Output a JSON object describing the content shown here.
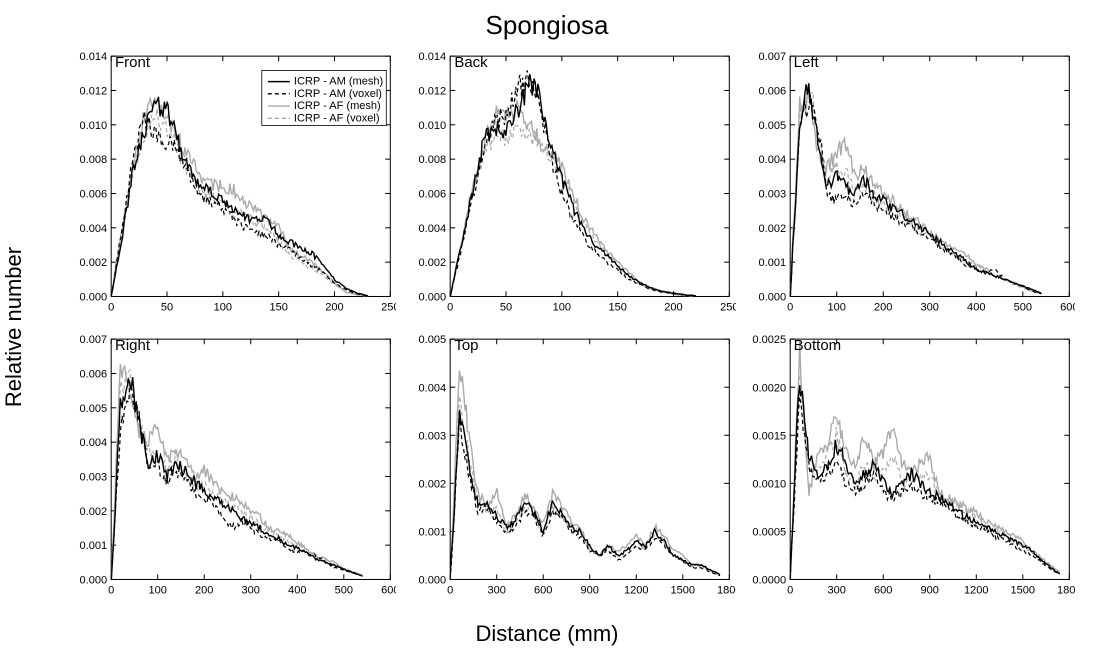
{
  "title": "Spongiosa",
  "y_axis_label": "Relative number",
  "x_axis_label": "Distance (mm)",
  "background_color": "#ffffff",
  "axis_color": "#000000",
  "tick_fontsize": 11,
  "label_fontsize": 22,
  "title_fontsize": 26,
  "panel_title_fontsize": 15,
  "legend": {
    "show_in_panel": 0,
    "items": [
      {
        "label": "ICRP - AM (mesh)",
        "color": "#000000",
        "dash": "solid"
      },
      {
        "label": "ICRP - AM (voxel)",
        "color": "#000000",
        "dash": "dash"
      },
      {
        "label": "ICRP - AF (mesh)",
        "color": "#aaaaaa",
        "dash": "solid"
      },
      {
        "label": "ICRP - AF (voxel)",
        "color": "#aaaaaa",
        "dash": "dash"
      }
    ]
  },
  "series_styles": [
    {
      "key": "am_mesh",
      "color": "#000000",
      "dash": "",
      "width": 1.4
    },
    {
      "key": "am_voxel",
      "color": "#000000",
      "dash": "4 3",
      "width": 1.2
    },
    {
      "key": "af_mesh",
      "color": "#aaaaaa",
      "dash": "",
      "width": 1.4
    },
    {
      "key": "af_voxel",
      "color": "#aaaaaa",
      "dash": "4 3",
      "width": 1.2
    }
  ],
  "panels": [
    {
      "name": "Front",
      "xlim": [
        0,
        250
      ],
      "xtick_step": 50,
      "ylim": [
        0,
        0.014
      ],
      "ytick_step": 0.002,
      "y_decimals": 3,
      "x_seed": [
        0,
        10,
        20,
        30,
        40,
        50,
        60,
        70,
        80,
        90,
        100,
        110,
        120,
        130,
        140,
        150,
        160,
        170,
        180,
        190,
        200,
        210,
        220,
        230
      ],
      "series": {
        "am_mesh": [
          0.0,
          0.0035,
          0.0075,
          0.0098,
          0.0112,
          0.0108,
          0.009,
          0.0075,
          0.0064,
          0.006,
          0.0055,
          0.005,
          0.0046,
          0.0045,
          0.0044,
          0.0035,
          0.0032,
          0.0028,
          0.0025,
          0.0018,
          0.001,
          0.0005,
          0.0002,
          5e-05
        ],
        "am_voxel": [
          0.0,
          0.004,
          0.0082,
          0.0105,
          0.0095,
          0.009,
          0.0085,
          0.0072,
          0.0058,
          0.0055,
          0.0052,
          0.0045,
          0.004,
          0.0038,
          0.0035,
          0.003,
          0.0028,
          0.0022,
          0.0018,
          0.0014,
          0.0008,
          0.0004,
          0.00015,
          3e-05
        ],
        "af_mesh": [
          0.0,
          0.004,
          0.008,
          0.0105,
          0.0116,
          0.0102,
          0.0092,
          0.0082,
          0.0068,
          0.0065,
          0.0064,
          0.0062,
          0.0055,
          0.005,
          0.0045,
          0.0042,
          0.0028,
          0.0024,
          0.002,
          0.0014,
          0.0008,
          0.00025,
          0.0001,
          3e-05
        ],
        "af_voxel": [
          0.0,
          0.0038,
          0.0075,
          0.0095,
          0.0105,
          0.0098,
          0.0085,
          0.0072,
          0.0062,
          0.0058,
          0.0055,
          0.0048,
          0.005,
          0.0042,
          0.004,
          0.0032,
          0.0024,
          0.002,
          0.0016,
          0.0012,
          0.0007,
          0.0003,
          0.0001,
          3e-05
        ]
      }
    },
    {
      "name": "Back",
      "xlim": [
        0,
        250
      ],
      "xtick_step": 50,
      "ylim": [
        0,
        0.014
      ],
      "ytick_step": 0.002,
      "y_decimals": 3,
      "x_seed": [
        0,
        10,
        20,
        30,
        40,
        50,
        60,
        70,
        80,
        90,
        100,
        110,
        120,
        130,
        140,
        150,
        160,
        170,
        180,
        190,
        200,
        210,
        220
      ],
      "series": {
        "am_mesh": [
          0.0,
          0.003,
          0.006,
          0.009,
          0.0098,
          0.0095,
          0.0109,
          0.0124,
          0.012,
          0.0086,
          0.0068,
          0.0052,
          0.0038,
          0.003,
          0.0024,
          0.0018,
          0.0012,
          0.0008,
          0.0005,
          0.0003,
          0.0002,
          0.0001,
          5e-05
        ],
        "am_voxel": [
          0.0,
          0.0028,
          0.0058,
          0.0085,
          0.0102,
          0.0105,
          0.012,
          0.0128,
          0.011,
          0.0082,
          0.006,
          0.0045,
          0.0034,
          0.0026,
          0.002,
          0.0015,
          0.001,
          0.0007,
          0.0004,
          0.00025,
          0.00015,
          8e-05,
          3e-05
        ],
        "af_mesh": [
          0.0,
          0.0032,
          0.0062,
          0.0088,
          0.0105,
          0.0106,
          0.0108,
          0.0102,
          0.009,
          0.0084,
          0.0075,
          0.006,
          0.0045,
          0.0035,
          0.0027,
          0.002,
          0.0014,
          0.0008,
          0.0005,
          0.0003,
          0.00015,
          8e-05,
          3e-05
        ],
        "af_voxel": [
          0.0,
          0.003,
          0.006,
          0.0082,
          0.0095,
          0.0092,
          0.0098,
          0.0095,
          0.0088,
          0.0082,
          0.007,
          0.0055,
          0.0042,
          0.0032,
          0.0025,
          0.0018,
          0.0012,
          0.0007,
          0.00045,
          0.00028,
          0.00012,
          6e-05,
          2e-05
        ]
      }
    },
    {
      "name": "Left",
      "xlim": [
        0,
        600
      ],
      "xtick_step": 100,
      "ylim": [
        0,
        0.007
      ],
      "ytick_step": 0.001,
      "y_decimals": 3,
      "x_seed": [
        0,
        20,
        40,
        60,
        80,
        100,
        120,
        140,
        160,
        180,
        200,
        220,
        240,
        260,
        280,
        300,
        320,
        340,
        360,
        380,
        400,
        420,
        440,
        460,
        480,
        500,
        520,
        540
      ],
      "series": {
        "am_mesh": [
          0.0,
          0.005,
          0.0062,
          0.0045,
          0.0032,
          0.0035,
          0.0032,
          0.003,
          0.0034,
          0.003,
          0.0028,
          0.0026,
          0.0024,
          0.0022,
          0.002,
          0.0018,
          0.0016,
          0.0014,
          0.0012,
          0.001,
          0.0008,
          0.0007,
          0.0006,
          0.0005,
          0.0004,
          0.0003,
          0.0002,
          0.0001
        ],
        "am_voxel": [
          0.0,
          0.0048,
          0.0058,
          0.005,
          0.003,
          0.0028,
          0.003,
          0.0026,
          0.0031,
          0.0027,
          0.0025,
          0.0023,
          0.0022,
          0.002,
          0.0018,
          0.0017,
          0.0015,
          0.0013,
          0.0011,
          0.0009,
          0.0008,
          0.0007,
          0.0008,
          0.0005,
          0.0004,
          0.0003,
          0.00015,
          8e-05
        ],
        "af_mesh": [
          0.0,
          0.0055,
          0.0058,
          0.0042,
          0.0038,
          0.0042,
          0.0045,
          0.0035,
          0.0038,
          0.0032,
          0.003,
          0.0028,
          0.0025,
          0.0023,
          0.0021,
          0.0019,
          0.0017,
          0.0015,
          0.0013,
          0.0012,
          0.0009,
          0.0008,
          0.0006,
          0.0005,
          0.0004,
          0.0003,
          0.0002,
          0.0001
        ],
        "af_voxel": [
          0.0,
          0.0052,
          0.0063,
          0.0048,
          0.0035,
          0.0038,
          0.0036,
          0.0032,
          0.0033,
          0.0029,
          0.0027,
          0.0025,
          0.0023,
          0.0021,
          0.0019,
          0.0018,
          0.0015,
          0.0013,
          0.0012,
          0.001,
          0.0009,
          0.0007,
          0.0006,
          0.0005,
          0.00035,
          0.00025,
          0.00015,
          8e-05
        ]
      }
    },
    {
      "name": "Right",
      "xlim": [
        0,
        600
      ],
      "xtick_step": 100,
      "ylim": [
        0,
        0.007
      ],
      "ytick_step": 0.001,
      "y_decimals": 3,
      "x_seed": [
        0,
        20,
        40,
        60,
        80,
        100,
        120,
        140,
        160,
        180,
        200,
        220,
        240,
        260,
        280,
        300,
        320,
        340,
        360,
        380,
        400,
        420,
        440,
        460,
        480,
        500,
        520,
        540
      ],
      "series": {
        "am_mesh": [
          0.0,
          0.005,
          0.006,
          0.0045,
          0.0034,
          0.0036,
          0.003,
          0.0033,
          0.0032,
          0.0028,
          0.0026,
          0.0024,
          0.0022,
          0.002,
          0.0018,
          0.0016,
          0.0015,
          0.0013,
          0.0012,
          0.001,
          0.0009,
          0.0008,
          0.0006,
          0.0005,
          0.0004,
          0.0003,
          0.0002,
          0.0001
        ],
        "am_voxel": [
          0.0,
          0.0045,
          0.0055,
          0.0048,
          0.0032,
          0.0033,
          0.0028,
          0.0031,
          0.0029,
          0.0025,
          0.0024,
          0.0022,
          0.0018,
          0.0015,
          0.0017,
          0.0015,
          0.0013,
          0.0012,
          0.0011,
          0.0009,
          0.0008,
          0.0008,
          0.0007,
          0.0005,
          0.00035,
          0.00028,
          0.00018,
          0.0001
        ],
        "af_mesh": [
          0.0,
          0.0062,
          0.0055,
          0.0042,
          0.004,
          0.0044,
          0.0035,
          0.0038,
          0.0034,
          0.003,
          0.0032,
          0.0028,
          0.0025,
          0.0024,
          0.0022,
          0.002,
          0.0018,
          0.0015,
          0.0014,
          0.0013,
          0.0011,
          0.0009,
          0.0007,
          0.0006,
          0.0005,
          0.0003,
          0.00022,
          0.00012
        ],
        "af_voxel": [
          0.0,
          0.0055,
          0.006,
          0.0045,
          0.0038,
          0.0037,
          0.0033,
          0.0034,
          0.0031,
          0.0028,
          0.0027,
          0.0025,
          0.0023,
          0.0021,
          0.002,
          0.0018,
          0.0016,
          0.0014,
          0.0013,
          0.0011,
          0.001,
          0.0009,
          0.0007,
          0.0006,
          0.0004,
          0.0003,
          0.0002,
          0.0001
        ]
      }
    },
    {
      "name": "Top",
      "xlim": [
        0,
        1800
      ],
      "xtick_step": 300,
      "ylim": [
        0,
        0.005
      ],
      "ytick_step": 0.001,
      "y_decimals": 3,
      "x_seed": [
        0,
        60,
        120,
        180,
        240,
        300,
        360,
        420,
        480,
        540,
        600,
        660,
        720,
        780,
        840,
        900,
        960,
        1020,
        1080,
        1140,
        1200,
        1260,
        1320,
        1380,
        1440,
        1500,
        1560,
        1620,
        1680,
        1740
      ],
      "series": {
        "am_mesh": [
          0.0,
          0.0035,
          0.0024,
          0.0015,
          0.0016,
          0.0013,
          0.0011,
          0.0012,
          0.0016,
          0.0014,
          0.001,
          0.0016,
          0.0014,
          0.0011,
          0.001,
          0.0007,
          0.0005,
          0.0007,
          0.0005,
          0.0006,
          0.0008,
          0.0007,
          0.001,
          0.0008,
          0.0005,
          0.0004,
          0.0003,
          0.0003,
          0.0002,
          0.0001
        ],
        "am_voxel": [
          0.0,
          0.0032,
          0.0022,
          0.0014,
          0.0015,
          0.0012,
          0.001,
          0.0011,
          0.0014,
          0.0013,
          0.0009,
          0.0014,
          0.0013,
          0.001,
          0.0009,
          0.0006,
          0.0005,
          0.0006,
          0.0004,
          0.0005,
          0.0007,
          0.0006,
          0.0009,
          0.0007,
          0.0005,
          0.0004,
          0.00025,
          0.00025,
          0.00015,
          8e-05
        ],
        "af_mesh": [
          0.0,
          0.0045,
          0.003,
          0.0018,
          0.0015,
          0.0018,
          0.0011,
          0.0013,
          0.0018,
          0.0015,
          0.0012,
          0.0018,
          0.0015,
          0.0012,
          0.0011,
          0.0006,
          0.0005,
          0.0007,
          0.0006,
          0.0007,
          0.0009,
          0.0007,
          0.0011,
          0.0009,
          0.0006,
          0.0005,
          0.0003,
          0.0003,
          0.0002,
          0.0001
        ],
        "af_voxel": [
          0.0,
          0.0038,
          0.0026,
          0.0016,
          0.0014,
          0.0015,
          0.001,
          0.0012,
          0.0015,
          0.0013,
          0.001,
          0.0015,
          0.0013,
          0.0011,
          0.001,
          0.0006,
          0.0005,
          0.0006,
          0.0005,
          0.0006,
          0.0008,
          0.0006,
          0.001,
          0.0008,
          0.0005,
          0.0004,
          0.00028,
          0.00028,
          0.00018,
          9e-05
        ]
      }
    },
    {
      "name": "Bottom",
      "xlim": [
        0,
        1800
      ],
      "xtick_step": 300,
      "ylim": [
        0,
        0.0025
      ],
      "ytick_step": 0.0005,
      "y_decimals": 4,
      "x_seed": [
        0,
        60,
        120,
        180,
        240,
        300,
        360,
        420,
        480,
        540,
        600,
        660,
        720,
        780,
        840,
        900,
        960,
        1020,
        1080,
        1140,
        1200,
        1260,
        1320,
        1380,
        1440,
        1500,
        1560,
        1620,
        1680,
        1740
      ],
      "series": {
        "am_mesh": [
          0.0,
          0.0021,
          0.0013,
          0.0011,
          0.0012,
          0.0014,
          0.0012,
          0.001,
          0.0011,
          0.0012,
          0.001,
          0.0009,
          0.001,
          0.0011,
          0.001,
          0.0009,
          0.00085,
          0.0008,
          0.0007,
          0.00065,
          0.0006,
          0.00055,
          0.0005,
          0.00045,
          0.0004,
          0.00035,
          0.0003,
          0.0002,
          0.00012,
          6e-05
        ],
        "am_voxel": [
          0.0,
          0.0019,
          0.0012,
          0.001,
          0.0011,
          0.0012,
          0.001,
          0.0009,
          0.001,
          0.0011,
          0.0009,
          0.00085,
          0.0009,
          0.001,
          0.0009,
          0.00085,
          0.0008,
          0.00075,
          0.00065,
          0.0006,
          0.00055,
          0.0005,
          0.00045,
          0.0004,
          0.00035,
          0.0003,
          0.00025,
          0.00018,
          0.0001,
          5e-05
        ],
        "af_mesh": [
          0.0,
          0.0024,
          0.0009,
          0.0013,
          0.0014,
          0.0017,
          0.0013,
          0.0012,
          0.0015,
          0.0012,
          0.0013,
          0.0016,
          0.0012,
          0.0011,
          0.0012,
          0.0013,
          0.0009,
          0.00085,
          0.0008,
          0.00075,
          0.0007,
          0.0006,
          0.00055,
          0.0005,
          0.00045,
          0.0004,
          0.0003,
          0.00022,
          0.00014,
          8e-05
        ],
        "af_voxel": [
          0.0,
          0.0022,
          0.0011,
          0.0012,
          0.0013,
          0.0015,
          0.0011,
          0.001,
          0.0012,
          0.0011,
          0.0011,
          0.0013,
          0.001,
          0.001,
          0.0011,
          0.0011,
          0.00085,
          0.0008,
          0.00075,
          0.0007,
          0.00065,
          0.00055,
          0.0005,
          0.00045,
          0.0004,
          0.00035,
          0.00028,
          0.0002,
          0.00012,
          6e-05
        ]
      }
    }
  ]
}
